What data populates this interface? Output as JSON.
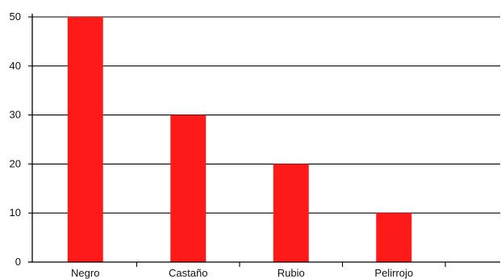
{
  "chart_data": {
    "type": "bar",
    "categories": [
      "Negro",
      "Castaño",
      "Rubio",
      "Pelirrojo"
    ],
    "values": [
      50,
      30,
      20,
      10
    ],
    "title": "",
    "xlabel": "",
    "ylabel": "",
    "ylim": [
      0,
      50
    ],
    "yticks": [
      0,
      10,
      20,
      30,
      40,
      50
    ],
    "grid": "horizontal",
    "legend": "none",
    "bar_color": "#ff1a1a",
    "axis_color": "#000000"
  }
}
